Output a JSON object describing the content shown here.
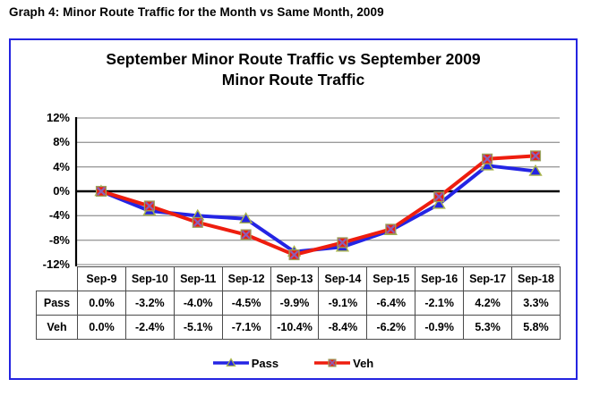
{
  "page_heading": "Graph 4: Minor Route Traffic for the Month vs Same Month, 2009",
  "chart": {
    "title_line1": "September Minor Route Traffic vs September 2009",
    "title_line2": "Minor Route Traffic",
    "frame_border_color": "#2424e0",
    "legend": [
      {
        "label": "Pass"
      },
      {
        "label": "Veh"
      }
    ]
  },
  "chart_data": {
    "type": "line",
    "title": "September Minor Route Traffic vs September 2009 Minor Route Traffic",
    "categories": [
      "Sep-9",
      "Sep-10",
      "Sep-11",
      "Sep-12",
      "Sep-13",
      "Sep-14",
      "Sep-15",
      "Sep-16",
      "Sep-17",
      "Sep-18"
    ],
    "series": [
      {
        "name": "Pass",
        "color": "#2424e4",
        "marker": "triangle",
        "marker_edge": "#a9b54c",
        "values": [
          0.0,
          -3.2,
          -4.0,
          -4.5,
          -9.9,
          -9.1,
          -6.4,
          -2.1,
          4.2,
          3.3
        ]
      },
      {
        "name": "Veh",
        "color": "#ee1d0e",
        "marker": "square-x",
        "marker_edge": "#9aa35e",
        "marker_x_color": "#8d5fb4",
        "values": [
          0.0,
          -2.4,
          -5.1,
          -7.1,
          -10.4,
          -8.4,
          -6.2,
          -0.9,
          5.3,
          5.8
        ]
      }
    ],
    "ylim": [
      -12,
      12
    ],
    "ytick_step": 4,
    "ytick_labels": [
      "12%",
      "8%",
      "4%",
      "0%",
      "-4%",
      "-8%",
      "-12%"
    ],
    "grid": true,
    "gridline_color": "#9c9c9c",
    "zero_line_color": "#000000",
    "legend_position": "bottom",
    "data_table": {
      "row_labels": [
        "Pass",
        "Veh"
      ],
      "rows": [
        [
          "0.0%",
          "-3.2%",
          "-4.0%",
          "-4.5%",
          "-9.9%",
          "-9.1%",
          "-6.4%",
          "-2.1%",
          "4.2%",
          "3.3%"
        ],
        [
          "0.0%",
          "-2.4%",
          "-5.1%",
          "-7.1%",
          "-10.4%",
          "-8.4%",
          "-6.2%",
          "-0.9%",
          "5.3%",
          "5.8%"
        ]
      ]
    }
  }
}
